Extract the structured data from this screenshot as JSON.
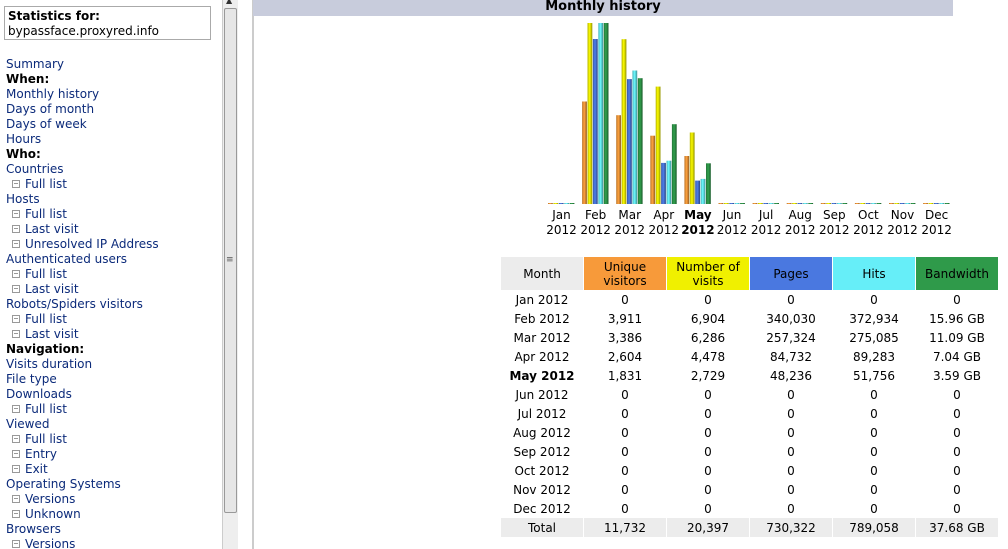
{
  "sidebar": {
    "stats_title": "Statistics for:",
    "site": "bypassface.proxyred.info",
    "items": [
      {
        "type": "link",
        "label": "Summary"
      },
      {
        "type": "header",
        "label": "When:"
      },
      {
        "type": "link",
        "label": "Monthly history"
      },
      {
        "type": "link",
        "label": "Days of month"
      },
      {
        "type": "link",
        "label": "Days of week"
      },
      {
        "type": "link",
        "label": "Hours"
      },
      {
        "type": "header",
        "label": "Who:"
      },
      {
        "type": "link",
        "label": "Countries"
      },
      {
        "type": "sub",
        "label": "Full list"
      },
      {
        "type": "link",
        "label": "Hosts"
      },
      {
        "type": "sub",
        "label": "Full list"
      },
      {
        "type": "sub",
        "label": "Last visit"
      },
      {
        "type": "sub",
        "label": "Unresolved IP Address"
      },
      {
        "type": "link",
        "label": "Authenticated users"
      },
      {
        "type": "sub",
        "label": "Full list"
      },
      {
        "type": "sub",
        "label": "Last visit"
      },
      {
        "type": "link",
        "label": "Robots/Spiders visitors"
      },
      {
        "type": "sub",
        "label": "Full list"
      },
      {
        "type": "sub",
        "label": "Last visit"
      },
      {
        "type": "header",
        "label": "Navigation:"
      },
      {
        "type": "link",
        "label": "Visits duration"
      },
      {
        "type": "link",
        "label": "File type"
      },
      {
        "type": "link",
        "label": "Downloads"
      },
      {
        "type": "sub",
        "label": "Full list"
      },
      {
        "type": "link",
        "label": "Viewed"
      },
      {
        "type": "sub",
        "label": "Full list"
      },
      {
        "type": "sub",
        "label": "Entry"
      },
      {
        "type": "sub",
        "label": "Exit"
      },
      {
        "type": "link",
        "label": "Operating Systems"
      },
      {
        "type": "sub",
        "label": "Versions"
      },
      {
        "type": "sub",
        "label": "Unknown"
      },
      {
        "type": "link",
        "label": "Browsers"
      },
      {
        "type": "sub",
        "label": "Versions"
      }
    ]
  },
  "section_title": "Monthly history",
  "colors": {
    "unique": "#f79a3a",
    "visits": "#f0f000",
    "pages": "#4a78e0",
    "hits": "#66eef8",
    "bandwidth": "#2f9a4a"
  },
  "chart_data": {
    "type": "bar",
    "categories": [
      {
        "month": "Jan",
        "year": "2012"
      },
      {
        "month": "Feb",
        "year": "2012"
      },
      {
        "month": "Mar",
        "year": "2012"
      },
      {
        "month": "Apr",
        "year": "2012"
      },
      {
        "month": "May",
        "year": "2012",
        "current": true
      },
      {
        "month": "Jun",
        "year": "2012"
      },
      {
        "month": "Jul",
        "year": "2012"
      },
      {
        "month": "Aug",
        "year": "2012"
      },
      {
        "month": "Sep",
        "year": "2012"
      },
      {
        "month": "Oct",
        "year": "2012"
      },
      {
        "month": "Nov",
        "year": "2012"
      },
      {
        "month": "Dec",
        "year": "2012"
      }
    ],
    "series": [
      {
        "key": "unique",
        "values": [
          0,
          3911,
          3386,
          2604,
          1831,
          0,
          0,
          0,
          0,
          0,
          0,
          0
        ]
      },
      {
        "key": "visits",
        "values": [
          0,
          6904,
          6286,
          4478,
          2729,
          0,
          0,
          0,
          0,
          0,
          0,
          0
        ]
      },
      {
        "key": "pages",
        "values": [
          0,
          340030,
          257324,
          84732,
          48236,
          0,
          0,
          0,
          0,
          0,
          0,
          0
        ]
      },
      {
        "key": "hits",
        "values": [
          0,
          372934,
          275085,
          89283,
          51756,
          0,
          0,
          0,
          0,
          0,
          0,
          0
        ]
      },
      {
        "key": "bandwidth",
        "values": [
          0,
          15.96,
          11.09,
          7.04,
          3.59,
          0,
          0,
          0,
          0,
          0,
          0,
          0
        ]
      }
    ]
  },
  "table": {
    "headers": [
      "Month",
      "Unique visitors",
      "Number of visits",
      "Pages",
      "Hits",
      "Bandwidth"
    ],
    "rows": [
      [
        "Jan 2012",
        "0",
        "0",
        "0",
        "0",
        "0"
      ],
      [
        "Feb 2012",
        "3,911",
        "6,904",
        "340,030",
        "372,934",
        "15.96 GB"
      ],
      [
        "Mar 2012",
        "3,386",
        "6,286",
        "257,324",
        "275,085",
        "11.09 GB"
      ],
      [
        "Apr 2012",
        "2,604",
        "4,478",
        "84,732",
        "89,283",
        "7.04 GB"
      ],
      [
        "May 2012",
        "1,831",
        "2,729",
        "48,236",
        "51,756",
        "3.59 GB"
      ],
      [
        "Jun 2012",
        "0",
        "0",
        "0",
        "0",
        "0"
      ],
      [
        "Jul 2012",
        "0",
        "0",
        "0",
        "0",
        "0"
      ],
      [
        "Aug 2012",
        "0",
        "0",
        "0",
        "0",
        "0"
      ],
      [
        "Sep 2012",
        "0",
        "0",
        "0",
        "0",
        "0"
      ],
      [
        "Oct 2012",
        "0",
        "0",
        "0",
        "0",
        "0"
      ],
      [
        "Nov 2012",
        "0",
        "0",
        "0",
        "0",
        "0"
      ],
      [
        "Dec 2012",
        "0",
        "0",
        "0",
        "0",
        "0"
      ]
    ],
    "current_row": 4,
    "total": [
      "Total",
      "11,732",
      "20,397",
      "730,322",
      "789,058",
      "37.68 GB"
    ]
  }
}
